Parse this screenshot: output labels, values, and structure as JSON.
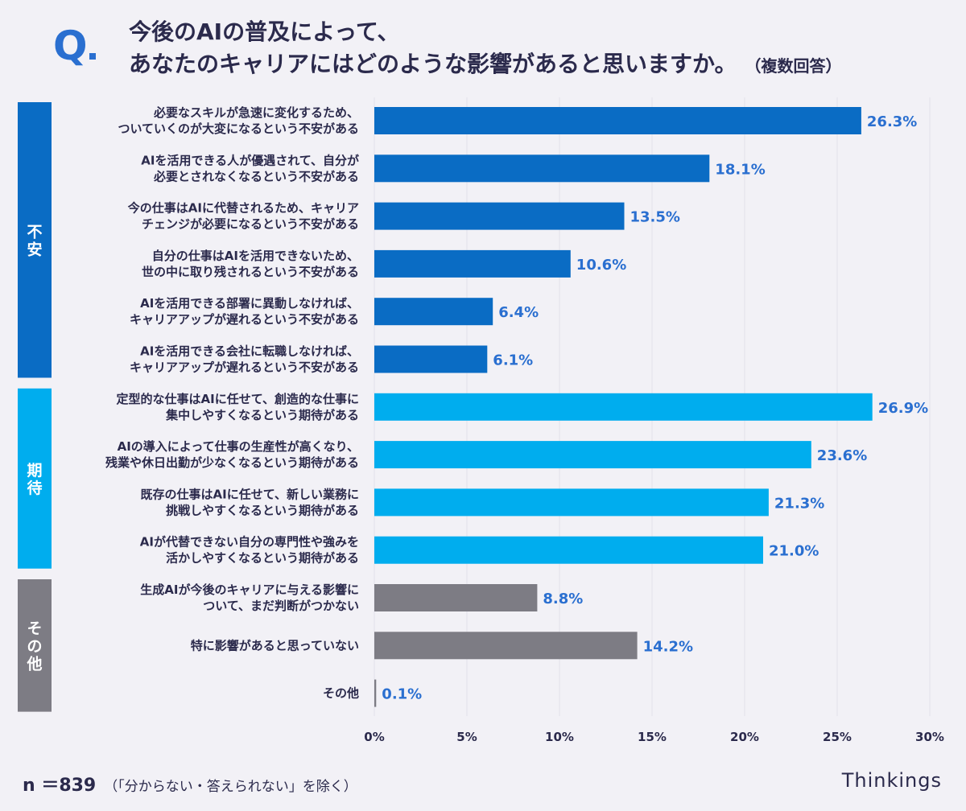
{
  "header": {
    "q_mark": "Q",
    "title_line1": "今後のAIの普及によって、",
    "title_line2": "あなたのキャリアにはどのような影響があると思いますか。",
    "title_note": "（複数回答）"
  },
  "footer": {
    "n_label": "n ＝839",
    "exclusion": "（「分からない・答えられない」を除く）",
    "brand": "Thinkings"
  },
  "colors": {
    "anxiety": "#0a6cc4",
    "expectation": "#00adee",
    "other": "#7d7c84",
    "value_label": "#2a6fd0",
    "grid": "#e2e1ea"
  },
  "chart_data": {
    "type": "bar",
    "orientation": "horizontal",
    "xlim": [
      0,
      30
    ],
    "x_ticks": [
      "0%",
      "5%",
      "10%",
      "15%",
      "20%",
      "25%",
      "30%"
    ],
    "grid": true,
    "value_suffix": "%",
    "groups": [
      {
        "label": "不安",
        "key": "anxiety"
      },
      {
        "label": "期待",
        "key": "expectation"
      },
      {
        "label": "その他",
        "key": "other"
      }
    ],
    "categories": [
      {
        "group": "anxiety",
        "lines": [
          "必要なスキルが急速に変化するため、",
          "ついていくのが大変になるという不安がある"
        ],
        "value": 26.3
      },
      {
        "group": "anxiety",
        "lines": [
          "AIを活用できる人が優遇されて、自分が",
          "必要とされなくなるという不安がある"
        ],
        "value": 18.1
      },
      {
        "group": "anxiety",
        "lines": [
          "今の仕事はAIに代替されるため、キャリア",
          "チェンジが必要になるという不安がある"
        ],
        "value": 13.5
      },
      {
        "group": "anxiety",
        "lines": [
          "自分の仕事はAIを活用できないため、",
          "世の中に取り残されるという不安がある"
        ],
        "value": 10.6
      },
      {
        "group": "anxiety",
        "lines": [
          "AIを活用できる部署に異動しなければ、",
          "キャリアアップが遅れるという不安がある"
        ],
        "value": 6.4
      },
      {
        "group": "anxiety",
        "lines": [
          "AIを活用できる会社に転職しなければ、",
          "キャリアアップが遅れるという不安がある"
        ],
        "value": 6.1
      },
      {
        "group": "expectation",
        "lines": [
          "定型的な仕事はAIに任せて、創造的な仕事に",
          "集中しやすくなるという期待がある"
        ],
        "value": 26.9
      },
      {
        "group": "expectation",
        "lines": [
          "AIの導入によって仕事の生産性が高くなり、",
          "残業や休日出勤が少なくなるという期待がある"
        ],
        "value": 23.6
      },
      {
        "group": "expectation",
        "lines": [
          "既存の仕事はAIに任せて、新しい業務に",
          "挑戦しやすくなるという期待がある"
        ],
        "value": 21.3
      },
      {
        "group": "expectation",
        "lines": [
          "AIが代替できない自分の専門性や強みを",
          "活かしやすくなるという期待がある"
        ],
        "value": 21.0
      },
      {
        "group": "other",
        "lines": [
          "生成AIが今後のキャリアに与える影響に",
          "ついて、まだ判断がつかない"
        ],
        "value": 8.8
      },
      {
        "group": "other",
        "lines": [
          "特に影響があると思っていない"
        ],
        "value": 14.2
      },
      {
        "group": "other",
        "lines": [
          "その他"
        ],
        "value": 0.1
      }
    ]
  }
}
